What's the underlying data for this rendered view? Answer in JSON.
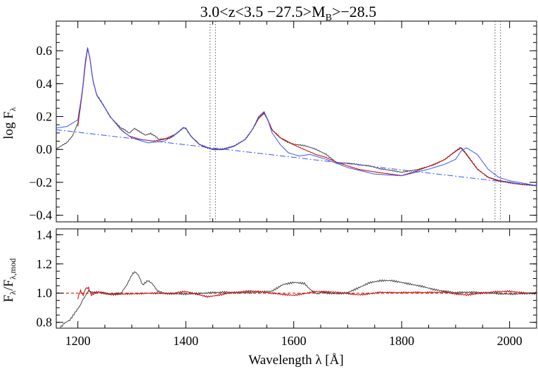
{
  "chart_data": [
    {
      "type": "line",
      "panel": "top",
      "title": "3.0<z<3.5 −27.5>M",
      "title_sub": "B",
      "title_tail": ">−28.5",
      "ylabel": "log F",
      "ylabel_sub": "λ",
      "xlim": [
        1160,
        2050
      ],
      "ylim": [
        -0.44,
        0.78
      ],
      "x_ticks": [
        1200,
        1400,
        1600,
        1800,
        2000
      ],
      "y_ticks": [
        -0.4,
        -0.2,
        0.0,
        0.2,
        0.4,
        0.6
      ],
      "y_tick_labels": [
        "−0.4",
        "−0.2",
        "0.0",
        "0.2",
        "0.4",
        "0.6"
      ],
      "vlines": [
        1445,
        1455,
        1973,
        1983
      ],
      "series": [
        {
          "color": "#444444",
          "x": [
            1160,
            1170,
            1180,
            1190,
            1200,
            1208,
            1214,
            1218,
            1222,
            1228,
            1235,
            1245,
            1260,
            1280,
            1295,
            1305,
            1315,
            1325,
            1335,
            1350,
            1370,
            1385,
            1395,
            1400,
            1410,
            1425,
            1450,
            1470,
            1490,
            1510,
            1525,
            1535,
            1545,
            1552,
            1560,
            1575,
            1600,
            1620,
            1640,
            1660,
            1680,
            1700,
            1720,
            1740,
            1760,
            1780,
            1800,
            1830,
            1860,
            1880,
            1900,
            1910,
            1920,
            1940,
            1960,
            1980,
            2000,
            2020,
            2050
          ],
          "y": [
            0.0,
            0.02,
            0.04,
            0.08,
            0.16,
            0.34,
            0.52,
            0.62,
            0.56,
            0.42,
            0.33,
            0.28,
            0.2,
            0.13,
            0.1,
            0.13,
            0.11,
            0.09,
            0.1,
            0.06,
            0.07,
            0.1,
            0.13,
            0.13,
            0.08,
            0.03,
            0.0,
            0.0,
            0.02,
            0.06,
            0.13,
            0.19,
            0.22,
            0.18,
            0.12,
            0.07,
            0.03,
            0.02,
            0.0,
            -0.03,
            -0.08,
            -0.08,
            -0.09,
            -0.1,
            -0.12,
            -0.13,
            -0.14,
            -0.12,
            -0.09,
            -0.06,
            -0.01,
            0.01,
            -0.03,
            -0.12,
            -0.17,
            -0.19,
            -0.2,
            -0.21,
            -0.22
          ]
        },
        {
          "color": "#cc0000",
          "x": [
            1200,
            1208,
            1214,
            1218,
            1222,
            1228,
            1235,
            1245,
            1260,
            1280,
            1295,
            1305,
            1320,
            1340,
            1360,
            1380,
            1395,
            1400,
            1410,
            1425,
            1450,
            1470,
            1490,
            1510,
            1525,
            1535,
            1545,
            1552,
            1560,
            1575,
            1600,
            1620,
            1640,
            1660,
            1680,
            1700,
            1720,
            1740,
            1760,
            1780,
            1800,
            1830,
            1860,
            1880,
            1900,
            1910,
            1920,
            1940,
            1960,
            1980,
            2000,
            2020,
            2050
          ],
          "y": [
            0.14,
            0.34,
            0.52,
            0.61,
            0.56,
            0.42,
            0.33,
            0.28,
            0.2,
            0.12,
            0.08,
            0.07,
            0.06,
            0.05,
            0.06,
            0.09,
            0.13,
            0.13,
            0.08,
            0.03,
            0.0,
            0.0,
            0.02,
            0.06,
            0.13,
            0.19,
            0.22,
            0.18,
            0.12,
            0.07,
            0.03,
            0.0,
            -0.03,
            -0.05,
            -0.08,
            -0.1,
            -0.12,
            -0.13,
            -0.14,
            -0.15,
            -0.16,
            -0.13,
            -0.09,
            -0.06,
            -0.01,
            0.01,
            -0.03,
            -0.12,
            -0.17,
            -0.19,
            -0.2,
            -0.21,
            -0.22
          ]
        },
        {
          "color": "#3355ff",
          "x": [
            1160,
            1180,
            1200,
            1208,
            1214,
            1218,
            1222,
            1228,
            1235,
            1245,
            1260,
            1280,
            1300,
            1330,
            1360,
            1380,
            1395,
            1400,
            1410,
            1425,
            1450,
            1470,
            1490,
            1510,
            1525,
            1535,
            1545,
            1552,
            1560,
            1575,
            1590,
            1610,
            1630,
            1660,
            1700,
            1750,
            1800,
            1850,
            1880,
            1900,
            1910,
            1920,
            1940,
            1960,
            1980,
            2000,
            2050
          ],
          "y": [
            0.13,
            0.14,
            0.18,
            0.35,
            0.54,
            0.62,
            0.56,
            0.42,
            0.33,
            0.28,
            0.2,
            0.12,
            0.07,
            0.04,
            0.05,
            0.09,
            0.13,
            0.13,
            0.08,
            0.03,
            0.0,
            0.0,
            0.02,
            0.06,
            0.13,
            0.2,
            0.23,
            0.18,
            0.1,
            0.03,
            -0.02,
            -0.04,
            -0.03,
            -0.06,
            -0.11,
            -0.15,
            -0.16,
            -0.12,
            -0.09,
            -0.06,
            -0.01,
            0.01,
            -0.03,
            -0.12,
            -0.17,
            -0.19,
            -0.22
          ]
        },
        {
          "color": "#3355ff",
          "style": "dash-dot",
          "x": [
            1160,
            2050
          ],
          "y": [
            0.12,
            -0.22
          ]
        }
      ]
    },
    {
      "type": "line",
      "panel": "bottom",
      "xlabel": "Wavelength λ [Å]",
      "ylabel": "F",
      "ylabel_sub": "λ",
      "ylabel_mid": "/F",
      "ylabel_sub2": "λ,mod",
      "xlim": [
        1160,
        2050
      ],
      "ylim": [
        0.76,
        1.44
      ],
      "x_ticks": [
        1200,
        1400,
        1600,
        1800,
        2000
      ],
      "x_tick_labels": [
        "1200",
        "1400",
        "1600",
        "1800",
        "2000"
      ],
      "y_ticks": [
        0.8,
        1.0,
        1.2,
        1.4
      ],
      "y_tick_labels": [
        "0.8",
        "1.0",
        "1.2",
        "1.4"
      ],
      "hline": 1.0,
      "series": [
        {
          "color": "#444444",
          "x": [
            1165,
            1175,
            1185,
            1195,
            1205,
            1212,
            1220,
            1235,
            1260,
            1280,
            1290,
            1300,
            1307,
            1312,
            1320,
            1330,
            1338,
            1348,
            1360,
            1400,
            1450,
            1500,
            1560,
            1580,
            1600,
            1620,
            1630,
            1645,
            1660,
            1680,
            1700,
            1720,
            1740,
            1760,
            1780,
            1800,
            1820,
            1840,
            1860,
            1900,
            1950,
            2000,
            2050
          ],
          "y": [
            0.76,
            0.8,
            0.82,
            0.87,
            0.92,
            0.97,
            1.02,
            1.0,
            1.0,
            1.0,
            1.05,
            1.12,
            1.15,
            1.12,
            1.05,
            1.08,
            1.06,
            1.01,
            1.0,
            1.0,
            1.0,
            1.0,
            1.02,
            1.06,
            1.07,
            1.06,
            1.02,
            1.0,
            1.0,
            1.0,
            1.01,
            1.04,
            1.07,
            1.08,
            1.08,
            1.07,
            1.06,
            1.05,
            1.03,
            1.0,
            1.0,
            1.0,
            1.0
          ]
        },
        {
          "color": "#cc0000",
          "x": [
            1200,
            1205,
            1210,
            1215,
            1220,
            1225,
            1235,
            1260,
            1290,
            1330,
            1370,
            1400,
            1440,
            1480,
            1520,
            1560,
            1600,
            1640,
            1680,
            1720,
            1760,
            1800,
            1840,
            1880,
            1920,
            1960,
            2000,
            2050
          ],
          "y": [
            0.96,
            1.02,
            0.98,
            1.04,
            1.03,
            0.99,
            1.01,
            0.99,
            1.0,
            1.0,
            0.99,
            1.01,
            0.98,
            1.0,
            1.01,
            1.0,
            0.99,
            1.01,
            1.0,
            0.99,
            1.01,
            1.0,
            1.0,
            1.01,
            0.99,
            1.0,
            1.01,
            1.0
          ]
        }
      ]
    }
  ]
}
